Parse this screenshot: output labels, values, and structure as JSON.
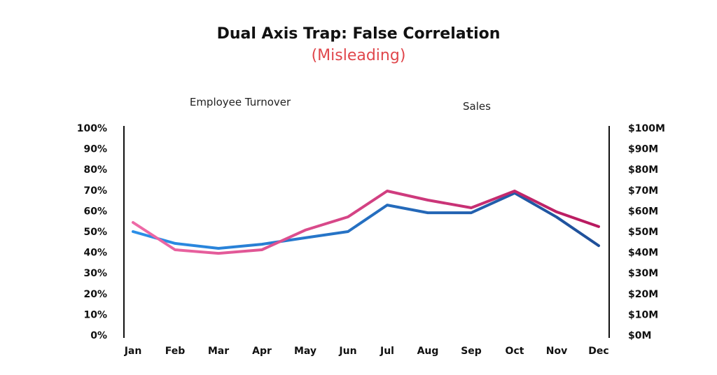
{
  "chart_data": {
    "type": "line",
    "title": "Dual Axis Trap: False Correlation",
    "subtitle": "(Misleading)",
    "categories": [
      "Jan",
      "Feb",
      "Mar",
      "Apr",
      "May",
      "Jun",
      "Jul",
      "Aug",
      "Sep",
      "Oct",
      "Nov",
      "Dec"
    ],
    "left_axis": {
      "ylim": [
        0,
        100
      ],
      "ticks": [
        "0%",
        "10%",
        "20%",
        "30%",
        "40%",
        "50%",
        "60%",
        "70%",
        "80%",
        "90%",
        "100%"
      ]
    },
    "right_axis": {
      "ylim": [
        0,
        100
      ],
      "ticks": [
        "$0M",
        "$10M",
        "$20M",
        "$30M",
        "$40M",
        "$50M",
        "$60M",
        "$70M",
        "$80M",
        "$90M",
        "$100M"
      ]
    },
    "grid": false,
    "legend_placement": "top",
    "series": [
      {
        "name": "Employee Turnover",
        "axis": "left",
        "color_start": "#2b8fe8",
        "color_end": "#1f4f99",
        "values": [
          50,
          44.3,
          41.9,
          43.9,
          47,
          50,
          62.8,
          59.1,
          59.1,
          68.6,
          57,
          43.2
        ]
      },
      {
        "name": "Sales",
        "axis": "right",
        "color_start": "#ee6aa7",
        "color_end": "#b8195f",
        "values": [
          54.4,
          41.2,
          39.5,
          41.2,
          50.7,
          57.1,
          69.6,
          65.2,
          61.5,
          69.6,
          59.5,
          52.4
        ]
      }
    ]
  }
}
